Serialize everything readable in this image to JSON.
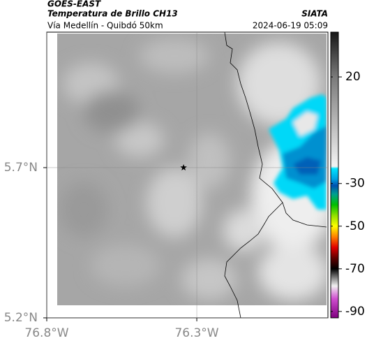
{
  "header": {
    "title": "GOES-EAST",
    "subtitle": "Temperatura de Brillo CH13",
    "region": "Vía Medellín - Quibdó 50km",
    "source": "SIATA",
    "timestamp": "2024-06-19 05:09"
  },
  "map": {
    "xlim": [
      -76.8,
      -75.863
    ],
    "ylim": [
      5.2,
      6.151
    ],
    "xticks": [
      {
        "value": -76.8,
        "label": "76.8°W"
      },
      {
        "value": -76.3,
        "label": "76.3°W"
      }
    ],
    "yticks": [
      {
        "value": 5.7,
        "label": "5.7°N"
      },
      {
        "value": 5.2,
        "label": "5.2°N"
      }
    ],
    "grid": true,
    "marker": {
      "lon": -76.344,
      "lat": 5.7
    }
  },
  "colorbar": {
    "lim": [
      -93,
      41
    ],
    "ticks": [
      20,
      -30,
      -50,
      -70,
      -90
    ],
    "stops": [
      {
        "value": 41,
        "color": "#151515"
      },
      {
        "value": 20,
        "color": "#7a7a7a"
      },
      {
        "value": -22,
        "color": "#f4f4f4"
      },
      {
        "value": -23,
        "color": "#00e4ff"
      },
      {
        "value": -28,
        "color": "#00a0e0"
      },
      {
        "value": -31,
        "color": "#0050b0"
      },
      {
        "value": -35,
        "color": "#00a090"
      },
      {
        "value": -40,
        "color": "#00c000"
      },
      {
        "value": -45,
        "color": "#90e000"
      },
      {
        "value": -50,
        "color": "#ffff00"
      },
      {
        "value": -55,
        "color": "#ff8000"
      },
      {
        "value": -60,
        "color": "#e00000"
      },
      {
        "value": -65,
        "color": "#600000"
      },
      {
        "value": -70,
        "color": "#000000"
      },
      {
        "value": -75,
        "color": "#999999"
      },
      {
        "value": -78,
        "color": "#f0f0f0"
      },
      {
        "value": -84,
        "color": "#d050d0"
      },
      {
        "value": -93,
        "color": "#800080"
      }
    ]
  }
}
